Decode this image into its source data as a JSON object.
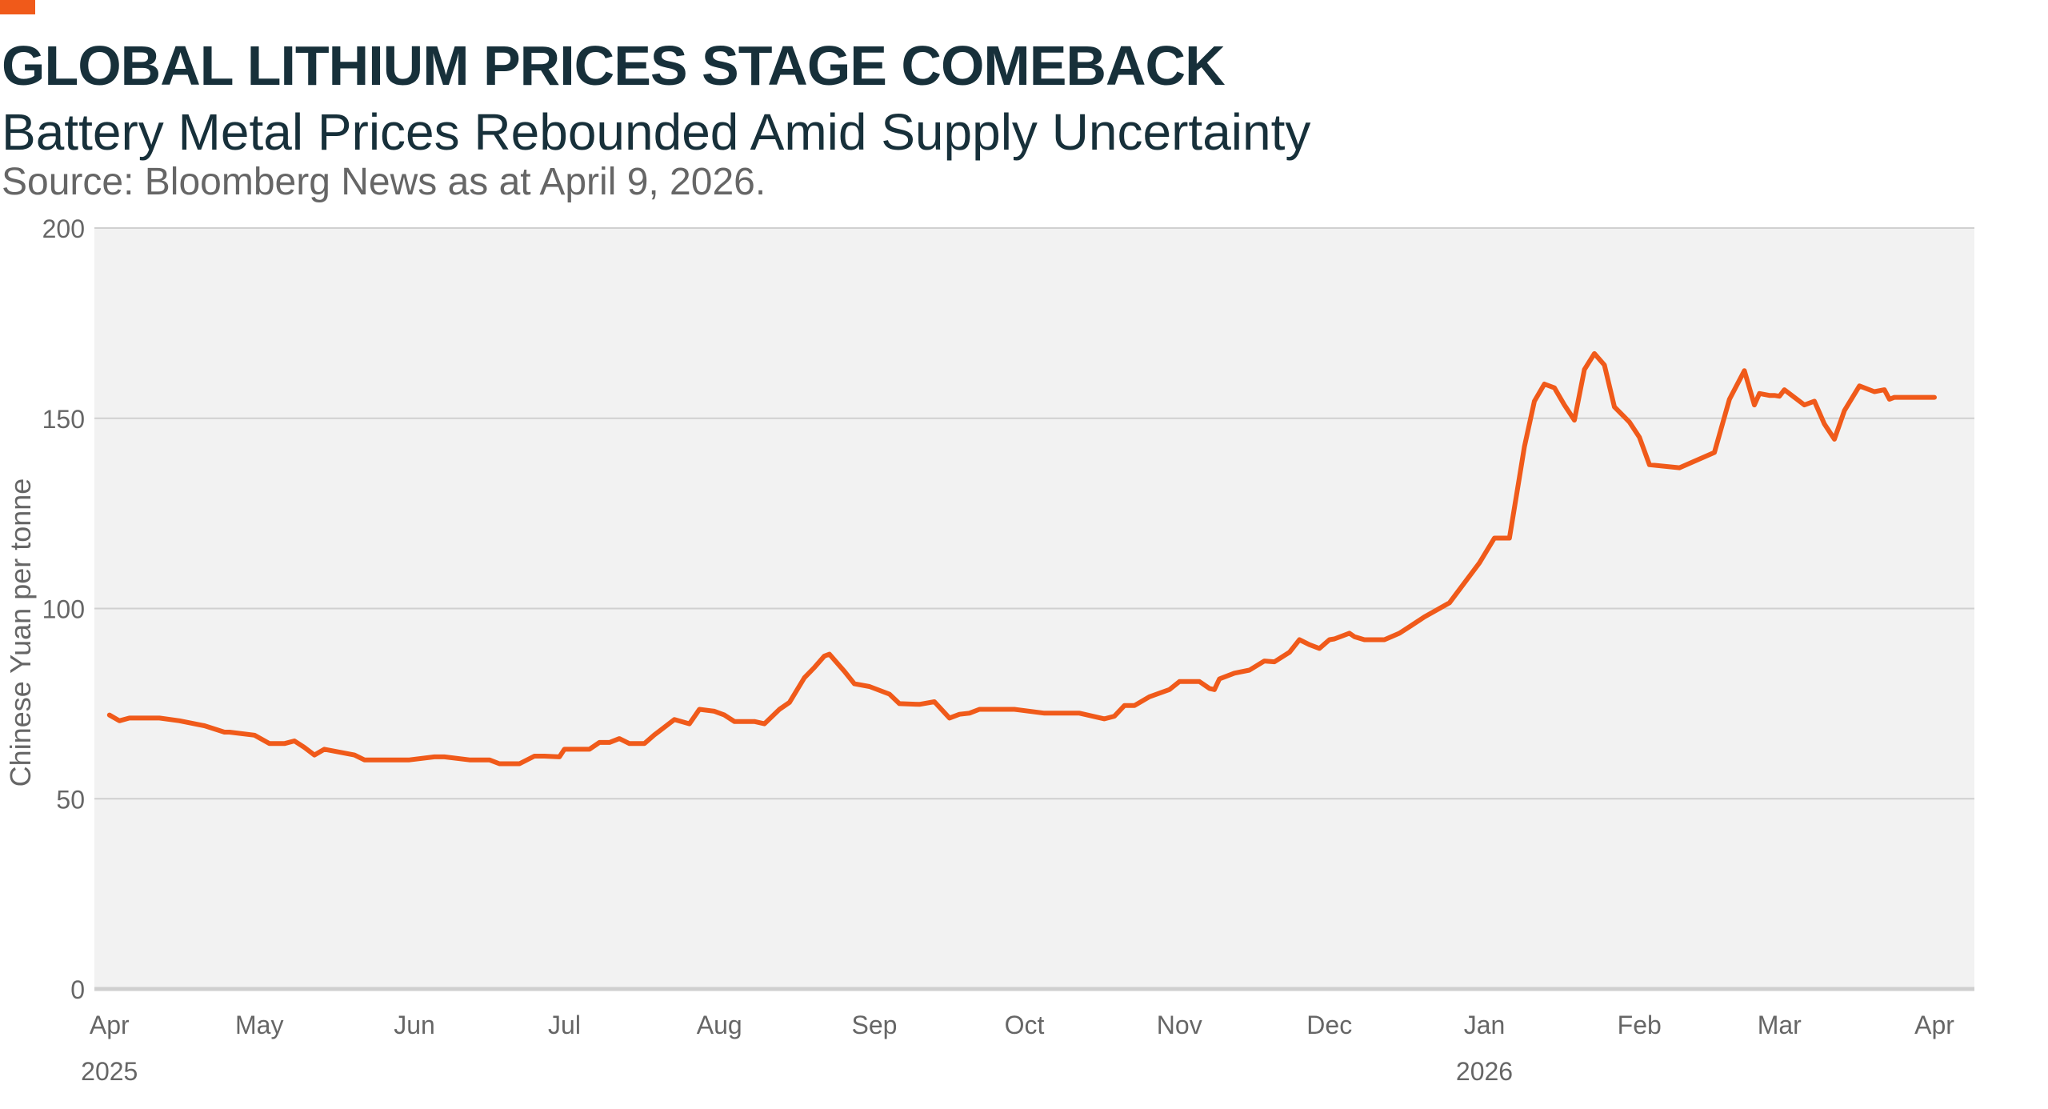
{
  "header": {
    "title": "GLOBAL LITHIUM PRICES STAGE COMEBACK",
    "subtitle": "Battery Metal Prices Rebounded Amid Supply Uncertainty",
    "source": "Source: Bloomberg News as at April 9, 2026."
  },
  "colors": {
    "accent": "#f05a1a",
    "line": "#f05a1a",
    "plot_bg": "#f2f2f2",
    "grid": "#d0d0d0",
    "text_dark": "#17303a",
    "text_muted": "#666666"
  },
  "chart_data": {
    "type": "line",
    "title": "GLOBAL LITHIUM PRICES STAGE COMEBACK",
    "ylabel": "Chinese Yuan per tonne",
    "xlabel": "",
    "ylim": [
      0,
      200
    ],
    "yticks": [
      0,
      50,
      100,
      150,
      200
    ],
    "grid": true,
    "xlim": [
      "2025-03-29",
      "2026-04-09"
    ],
    "xticks": [
      {
        "date": "2025-04-01",
        "label": "Apr",
        "year": "2025"
      },
      {
        "date": "2025-05-01",
        "label": "May",
        "year": ""
      },
      {
        "date": "2025-06-01",
        "label": "Jun",
        "year": ""
      },
      {
        "date": "2025-07-01",
        "label": "Jul",
        "year": ""
      },
      {
        "date": "2025-08-01",
        "label": "Aug",
        "year": ""
      },
      {
        "date": "2025-09-01",
        "label": "Sep",
        "year": ""
      },
      {
        "date": "2025-10-01",
        "label": "Oct",
        "year": ""
      },
      {
        "date": "2025-11-01",
        "label": "Nov",
        "year": ""
      },
      {
        "date": "2025-12-01",
        "label": "Dec",
        "year": ""
      },
      {
        "date": "2026-01-01",
        "label": "Jan",
        "year": "2026"
      },
      {
        "date": "2026-02-01",
        "label": "Feb",
        "year": ""
      },
      {
        "date": "2026-03-01",
        "label": "Mar",
        "year": ""
      },
      {
        "date": "2026-04-01",
        "label": "Apr",
        "year": ""
      }
    ],
    "series": [
      {
        "x": [
          "2025-04-01",
          "2025-04-03",
          "2025-04-05",
          "2025-04-08",
          "2025-04-11",
          "2025-04-15",
          "2025-04-20",
          "2025-04-24",
          "2025-04-25",
          "2025-04-30",
          "2025-05-03",
          "2025-05-06",
          "2025-05-08",
          "2025-05-10",
          "2025-05-12",
          "2025-05-14",
          "2025-05-16",
          "2025-05-20",
          "2025-05-22",
          "2025-05-28",
          "2025-05-31",
          "2025-06-05",
          "2025-06-07",
          "2025-06-12",
          "2025-06-13",
          "2025-06-16",
          "2025-06-18",
          "2025-06-22",
          "2025-06-25",
          "2025-06-27",
          "2025-06-30",
          "2025-07-01",
          "2025-07-03",
          "2025-07-06",
          "2025-07-08",
          "2025-07-10",
          "2025-07-12",
          "2025-07-14",
          "2025-07-17",
          "2025-07-19",
          "2025-07-20",
          "2025-07-23",
          "2025-07-26",
          "2025-07-28",
          "2025-07-31",
          "2025-08-02",
          "2025-08-04",
          "2025-08-06",
          "2025-08-08",
          "2025-08-10",
          "2025-08-13",
          "2025-08-15",
          "2025-08-18",
          "2025-08-20",
          "2025-08-22",
          "2025-08-23",
          "2025-08-26",
          "2025-08-28",
          "2025-08-31",
          "2025-09-04",
          "2025-09-06",
          "2025-09-10",
          "2025-09-13",
          "2025-09-16",
          "2025-09-18",
          "2025-09-20",
          "2025-09-22",
          "2025-09-29",
          "2025-10-05",
          "2025-10-07",
          "2025-10-09",
          "2025-10-12",
          "2025-10-17",
          "2025-10-19",
          "2025-10-21",
          "2025-10-23",
          "2025-10-26",
          "2025-10-30",
          "2025-11-01",
          "2025-11-05",
          "2025-11-07",
          "2025-11-08",
          "2025-11-09",
          "2025-11-12",
          "2025-11-15",
          "2025-11-18",
          "2025-11-20",
          "2025-11-23",
          "2025-11-25",
          "2025-11-27",
          "2025-11-29",
          "2025-12-01",
          "2025-12-02",
          "2025-12-05",
          "2025-12-06",
          "2025-12-08",
          "2025-12-10",
          "2025-12-12",
          "2025-12-15",
          "2025-12-17",
          "2025-12-20",
          "2025-12-25",
          "2025-12-31",
          "2026-01-03",
          "2026-01-06",
          "2026-01-08",
          "2026-01-09",
          "2026-01-11",
          "2026-01-13",
          "2026-01-15",
          "2026-01-17",
          "2026-01-19",
          "2026-01-21",
          "2026-01-23",
          "2026-01-25",
          "2026-01-27",
          "2026-01-30",
          "2026-02-01",
          "2026-02-03",
          "2026-02-09",
          "2026-02-16",
          "2026-02-19",
          "2026-02-22",
          "2026-02-24",
          "2026-02-25",
          "2026-02-27",
          "2026-02-28",
          "2026-03-01",
          "2026-03-02",
          "2026-03-05",
          "2026-03-06",
          "2026-03-08",
          "2026-03-10",
          "2026-03-12",
          "2026-03-14",
          "2026-03-17",
          "2026-03-20",
          "2026-03-22",
          "2026-03-23",
          "2026-03-24",
          "2026-03-25",
          "2026-03-26",
          "2026-04-01"
        ],
        "y": [
          72,
          70.5,
          71.2,
          71.2,
          71.2,
          70.5,
          69.2,
          67.5,
          67.5,
          66.7,
          64.5,
          64.5,
          65.2,
          63.5,
          61.5,
          63,
          62.5,
          61.5,
          60.2,
          60.2,
          60.2,
          61,
          61,
          60.2,
          60.2,
          60.2,
          59.2,
          59.2,
          61.2,
          61.2,
          61,
          63,
          63,
          63,
          64.8,
          64.8,
          65.8,
          64.5,
          64.5,
          66.8,
          67.8,
          70.8,
          69.7,
          73.5,
          73,
          72,
          70.3,
          70.3,
          70.3,
          69.7,
          73.5,
          75.3,
          81.8,
          84.5,
          87.5,
          88,
          83.5,
          80.2,
          79.5,
          77.5,
          75,
          74.8,
          75.5,
          71.2,
          72.2,
          72.5,
          73.5,
          73.5,
          72.5,
          72.5,
          72.5,
          72.5,
          71,
          71.7,
          74.5,
          74.5,
          76.8,
          78.7,
          80.8,
          80.8,
          79,
          78.7,
          81.5,
          83,
          83.8,
          86.2,
          86,
          88.5,
          91.8,
          90.5,
          89.5,
          91.8,
          92,
          93.5,
          92.6,
          91.8,
          91.8,
          91.8,
          93.5,
          95.2,
          97.8,
          101.5,
          112,
          118.5,
          118.5,
          134.5,
          142.5,
          154.5,
          159,
          158,
          153.5,
          149.5,
          162.8,
          167,
          164,
          153,
          149,
          145,
          137.8,
          137,
          141,
          155,
          162.5,
          153.5,
          156.5,
          156,
          156,
          155.8,
          157.5,
          154.5,
          153.5,
          154.5,
          148.5,
          144.5,
          152,
          158.5,
          157,
          157.5,
          155,
          155.5,
          155.5,
          155.5,
          155.5
        ]
      }
    ]
  }
}
